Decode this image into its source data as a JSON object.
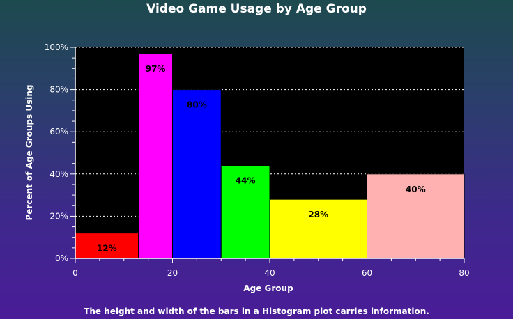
{
  "chart_data": {
    "type": "bar",
    "subtype": "histogram",
    "title": "Video Game Usage by Age Group",
    "xlabel": "Age Group",
    "ylabel": "Percent of Age Groups Using",
    "xlim": [
      0,
      80
    ],
    "ylim": [
      0,
      100
    ],
    "x_ticks": [
      0,
      20,
      40,
      60,
      80
    ],
    "y_ticks": [
      0,
      20,
      40,
      60,
      80,
      100
    ],
    "y_tick_labels": [
      "0%",
      "20%",
      "40%",
      "60%",
      "80%",
      "100%"
    ],
    "grid": "horizontal dotted",
    "plot_background": "#000000",
    "bins": [
      {
        "x0": 0,
        "x1": 13,
        "value": 12,
        "label": "12%",
        "color": "#ff0000"
      },
      {
        "x0": 13,
        "x1": 20,
        "value": 97,
        "label": "97%",
        "color": "#ff00ff"
      },
      {
        "x0": 20,
        "x1": 30,
        "value": 80,
        "label": "80%",
        "color": "#0000ff"
      },
      {
        "x0": 30,
        "x1": 40,
        "value": 44,
        "label": "44%",
        "color": "#00ff00"
      },
      {
        "x0": 40,
        "x1": 60,
        "value": 28,
        "label": "28%",
        "color": "#ffff00"
      },
      {
        "x0": 60,
        "x1": 80,
        "value": 40,
        "label": "40%",
        "color": "#ffb0b0"
      }
    ]
  },
  "caption": "The height and width of the bars in a Histogram plot carries information."
}
